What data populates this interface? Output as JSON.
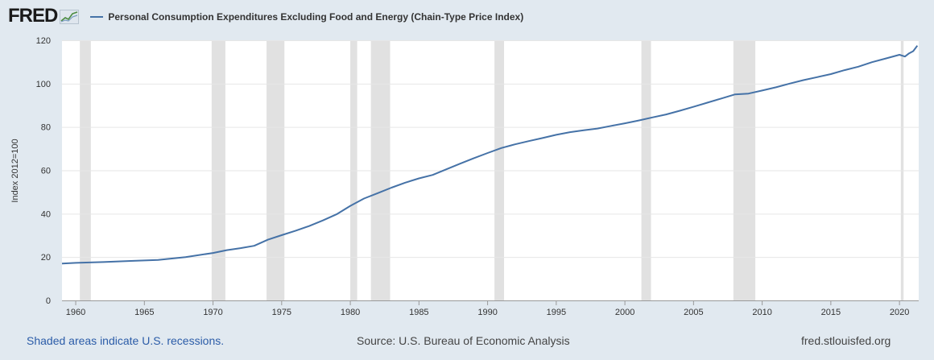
{
  "header": {
    "logo_text": "FRED",
    "logo_icon": "chart-line-icon"
  },
  "colors": {
    "background": "#e1e9f0",
    "plot_background": "#ffffff",
    "line": "#4572a7",
    "recession": "#e1e1e1",
    "link": "#2b5ca8"
  },
  "footer": {
    "recession_note": "Shaded areas indicate U.S. recessions.",
    "source": "Source: U.S. Bureau of Economic Analysis",
    "url": "fred.stlouisfed.org"
  },
  "chart_data": {
    "type": "line",
    "title": "",
    "legend": [
      "Personal Consumption Expenditures Excluding Food and Energy (Chain-Type Price Index)"
    ],
    "xlabel": "",
    "ylabel": "Index 2012=100",
    "xlim": [
      1959.0,
      2021.4
    ],
    "ylim": [
      0,
      120
    ],
    "x_ticks": [
      "1960",
      "1965",
      "1970",
      "1975",
      "1980",
      "1985",
      "1990",
      "1995",
      "2000",
      "2005",
      "2010",
      "2015",
      "2020"
    ],
    "y_ticks": [
      "0",
      "20",
      "40",
      "60",
      "80",
      "100",
      "120"
    ],
    "grid": true,
    "recessions": [
      [
        1960.3,
        1961.1
      ],
      [
        1969.9,
        1970.9
      ],
      [
        1973.9,
        1975.2
      ],
      [
        1980.0,
        1980.5
      ],
      [
        1981.5,
        1982.9
      ],
      [
        1990.5,
        1991.2
      ],
      [
        2001.2,
        2001.9
      ],
      [
        2007.9,
        2009.5
      ],
      [
        2020.1,
        2020.3
      ]
    ],
    "series": [
      {
        "name": "Personal Consumption Expenditures Excluding Food and Energy (Chain-Type Price Index)",
        "x": [
          1959,
          1960,
          1962,
          1964,
          1966,
          1968,
          1970,
          1971,
          1972,
          1973,
          1974,
          1975,
          1976,
          1977,
          1978,
          1979,
          1980,
          1981,
          1982,
          1983,
          1984,
          1985,
          1986,
          1987,
          1988,
          1989,
          1990,
          1991,
          1992,
          1993,
          1994,
          1995,
          1996,
          1997,
          1998,
          1999,
          2000,
          2001,
          2002,
          2003,
          2004,
          2005,
          2006,
          2007,
          2008,
          2009,
          2010,
          2011,
          2012,
          2013,
          2014,
          2015,
          2016,
          2017,
          2018,
          2019,
          2020,
          2020.4,
          2020.7,
          2021,
          2021.3
        ],
        "values": [
          17.0,
          17.3,
          17.7,
          18.2,
          18.7,
          20.0,
          21.9,
          23.2,
          24.1,
          25.2,
          28.0,
          30.1,
          32.1,
          34.3,
          36.9,
          39.7,
          43.6,
          47.0,
          49.5,
          52.0,
          54.3,
          56.3,
          57.9,
          60.5,
          63.1,
          65.6,
          68.0,
          70.3,
          72.0,
          73.5,
          74.9,
          76.4,
          77.6,
          78.5,
          79.3,
          80.5,
          81.7,
          83.0,
          84.4,
          85.8,
          87.5,
          89.3,
          91.2,
          93.1,
          95.0,
          95.4,
          96.8,
          98.3,
          100.0,
          101.6,
          103.0,
          104.4,
          106.2,
          107.8,
          109.9,
          111.6,
          113.3,
          112.5,
          114.0,
          115.0,
          117.5
        ]
      }
    ]
  }
}
